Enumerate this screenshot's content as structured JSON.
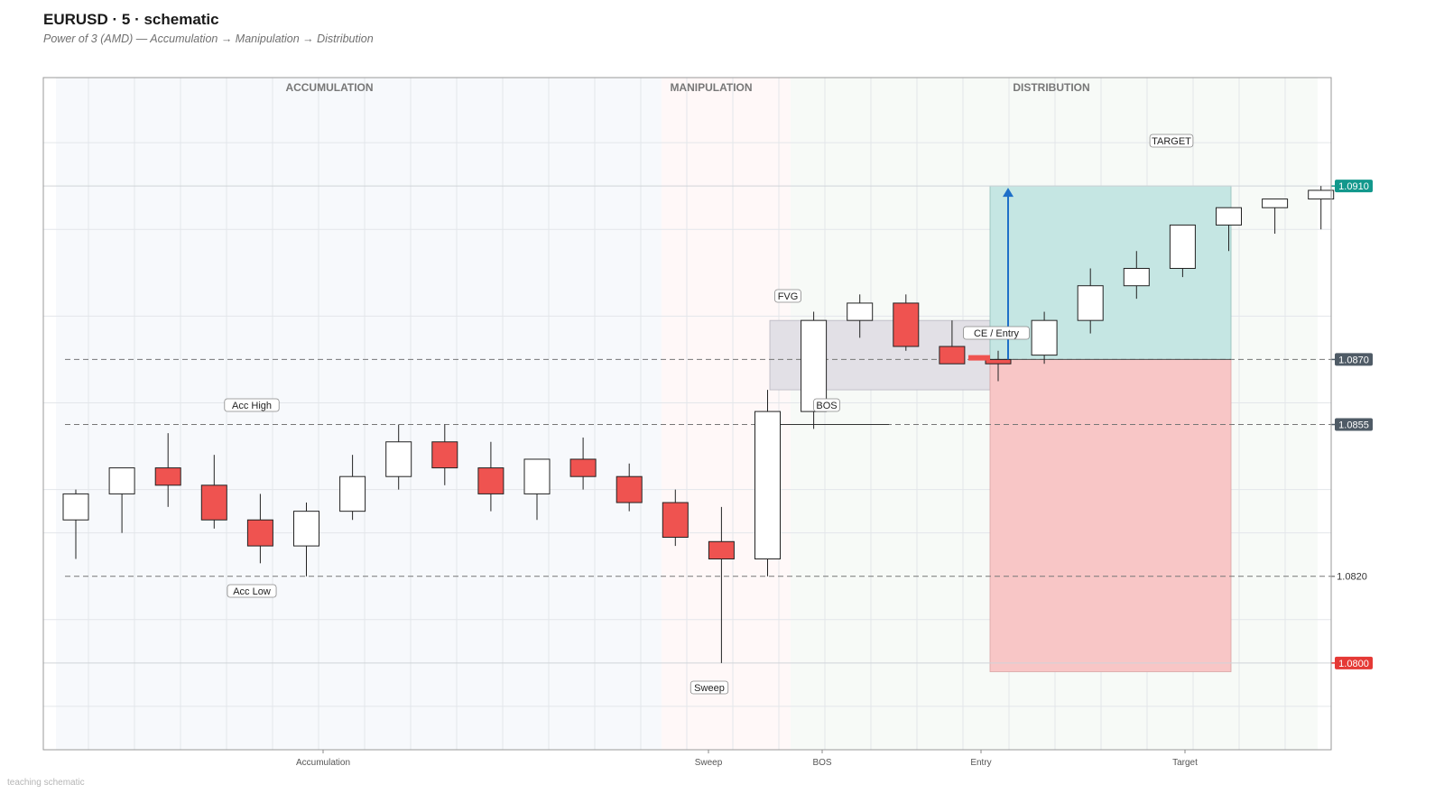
{
  "header": {
    "title": "EURUSD  ·  5  ·  schematic",
    "subtitle": "Power of 3 (AMD) — Accumulation → Manipulation → Distribution",
    "footnote": "teaching schematic"
  },
  "chart_data": {
    "type": "candlestick",
    "title": "EURUSD  ·  5  ·  schematic",
    "subtitle": "Power of 3 (AMD) — Accumulation → Manipulation → Distribution",
    "ylim": [
      1.078,
      1.0935
    ],
    "grid": true,
    "colors": {
      "bull": "#ffffff",
      "bear": "#ef5350",
      "outline": "#222222",
      "target_zone": "#c5e6e3",
      "stop_zone": "#f8c6c6",
      "fvg_zone": "#e2e0e6",
      "arrow": "#1e6fc8",
      "target_tag": "#12988c",
      "entry_tag": "#4f5b66",
      "stop_tag": "#e53935",
      "neutral_tag": "#4f5b66"
    },
    "phases": [
      {
        "name": "ACCUMULATION",
        "start": 0,
        "end": 12.7
      },
      {
        "name": "MANIPULATION",
        "start": 12.7,
        "end": 15.5
      },
      {
        "name": "DISTRIBUTION",
        "start": 15.5,
        "end": 27.5
      }
    ],
    "candles": [
      {
        "i": 0,
        "o": 1.0833,
        "h": 1.084,
        "l": 1.0824,
        "c": 1.0839
      },
      {
        "i": 1,
        "o": 1.0839,
        "h": 1.0845,
        "l": 1.083,
        "c": 1.0845
      },
      {
        "i": 2,
        "o": 1.0845,
        "h": 1.0853,
        "l": 1.0836,
        "c": 1.0841
      },
      {
        "i": 3,
        "o": 1.0841,
        "h": 1.0848,
        "l": 1.0831,
        "c": 1.0833
      },
      {
        "i": 4,
        "o": 1.0833,
        "h": 1.0839,
        "l": 1.0823,
        "c": 1.0827
      },
      {
        "i": 5,
        "o": 1.0827,
        "h": 1.0837,
        "l": 1.082,
        "c": 1.0835
      },
      {
        "i": 6,
        "o": 1.0835,
        "h": 1.0848,
        "l": 1.0833,
        "c": 1.0843
      },
      {
        "i": 7,
        "o": 1.0843,
        "h": 1.0855,
        "l": 1.084,
        "c": 1.0851
      },
      {
        "i": 8,
        "o": 1.0851,
        "h": 1.0855,
        "l": 1.0841,
        "c": 1.0845
      },
      {
        "i": 9,
        "o": 1.0845,
        "h": 1.0851,
        "l": 1.0835,
        "c": 1.0839
      },
      {
        "i": 10,
        "o": 1.0839,
        "h": 1.0846,
        "l": 1.0833,
        "c": 1.0847
      },
      {
        "i": 11,
        "o": 1.0847,
        "h": 1.0852,
        "l": 1.084,
        "c": 1.0843
      },
      {
        "i": 12,
        "o": 1.0843,
        "h": 1.0846,
        "l": 1.0835,
        "c": 1.0837
      },
      {
        "i": 13,
        "o": 1.0837,
        "h": 1.084,
        "l": 1.0827,
        "c": 1.0829
      },
      {
        "i": 14,
        "o": 1.0828,
        "h": 1.0836,
        "l": 1.08,
        "c": 1.0824
      },
      {
        "i": 15,
        "o": 1.0824,
        "h": 1.0863,
        "l": 1.082,
        "c": 1.0858
      },
      {
        "i": 16,
        "o": 1.0858,
        "h": 1.0881,
        "l": 1.0854,
        "c": 1.0879
      },
      {
        "i": 17,
        "o": 1.0879,
        "h": 1.0885,
        "l": 1.0875,
        "c": 1.0883
      },
      {
        "i": 18,
        "o": 1.0883,
        "h": 1.0885,
        "l": 1.0872,
        "c": 1.0873
      },
      {
        "i": 19,
        "o": 1.0873,
        "h": 1.0879,
        "l": 1.0869,
        "c": 1.0869
      },
      {
        "i": 20,
        "o": 1.087,
        "h": 1.0872,
        "l": 1.0865,
        "c": 1.0869
      },
      {
        "i": 21,
        "o": 1.0871,
        "h": 1.0881,
        "l": 1.0869,
        "c": 1.0879
      },
      {
        "i": 22,
        "o": 1.0879,
        "h": 1.0891,
        "l": 1.0876,
        "c": 1.0887
      },
      {
        "i": 23,
        "o": 1.0887,
        "h": 1.0895,
        "l": 1.0884,
        "c": 1.0891
      },
      {
        "i": 24,
        "o": 1.0891,
        "h": 1.09,
        "l": 1.0889,
        "c": 1.0901
      },
      {
        "i": 25,
        "o": 1.0901,
        "h": 1.0905,
        "l": 1.0895,
        "c": 1.0905
      },
      {
        "i": 26,
        "o": 1.0905,
        "h": 1.0906,
        "l": 1.0899,
        "c": 1.0907
      },
      {
        "i": 27,
        "o": 1.0907,
        "h": 1.091,
        "l": 1.09,
        "c": 1.0909
      }
    ],
    "levels": [
      {
        "name": "acc-high",
        "label": "Acc High",
        "price": 1.0855,
        "style": "dashed",
        "tag": "1.0855",
        "tag_style": "filled-neutral"
      },
      {
        "name": "acc-low",
        "label": "Acc Low",
        "price": 1.082,
        "style": "dashed",
        "tag": "1.0820",
        "tag_style": "plain"
      },
      {
        "name": "entry",
        "label": "CE / Entry",
        "price": 1.087,
        "style": "dashed",
        "tag": "1.0870",
        "tag_style": "filled-entry"
      },
      {
        "name": "target",
        "label": "TARGET",
        "price": 1.091,
        "style": "solid-faint",
        "tag": "1.0910",
        "tag_style": "filled-target"
      },
      {
        "name": "stop",
        "label": "",
        "price": 1.08,
        "style": "solid-faint",
        "tag": "1.0800",
        "tag_style": "filled-stop"
      }
    ],
    "zones": {
      "fvg": {
        "label": "FVG",
        "from_i": 15.0,
        "to_i": 20.7,
        "low": 1.0863,
        "high": 1.0879
      },
      "target_box": {
        "from_i": 20.7,
        "to_i": 25.95,
        "low": 1.087,
        "high": 1.091
      },
      "stop_box": {
        "from_i": 20.7,
        "to_i": 25.95,
        "low": 1.0798,
        "high": 1.087
      }
    },
    "annotations": [
      {
        "name": "acc-high-label",
        "text": "Acc High",
        "i": 4.3,
        "price": 1.0855,
        "pos": "above"
      },
      {
        "name": "acc-low-label",
        "text": "Acc Low",
        "i": 4.3,
        "price": 1.082,
        "pos": "below"
      },
      {
        "name": "sweep-label",
        "text": "Sweep",
        "i": 14,
        "price": 1.08,
        "pos": "below"
      },
      {
        "name": "fvg-label",
        "text": "FVG",
        "i": 16,
        "price": 1.0879,
        "pos": "above"
      },
      {
        "name": "bos-label",
        "text": "BOS",
        "i": 17,
        "price": 1.0855,
        "pos": "above"
      },
      {
        "name": "entry-label",
        "text": "CE / Entry",
        "i": 20.3,
        "price": 1.087,
        "pos": "above"
      },
      {
        "name": "target-label",
        "text": "TARGET",
        "i": 24.2,
        "price": 1.091,
        "pos": "above"
      }
    ],
    "bos_line": {
      "price": 1.0855,
      "from_i": 16,
      "to_i": 18.6
    },
    "arrow": {
      "i": 20.35,
      "from": 1.087,
      "to": 1.091
    },
    "x_ticks": [
      {
        "label": "Accumulation",
        "i": 5.5
      },
      {
        "label": "Sweep",
        "i": 14
      },
      {
        "label": "BOS",
        "i": 16.75
      },
      {
        "label": "Entry",
        "i": 20
      },
      {
        "label": "Target",
        "i": 24.5
      }
    ]
  }
}
